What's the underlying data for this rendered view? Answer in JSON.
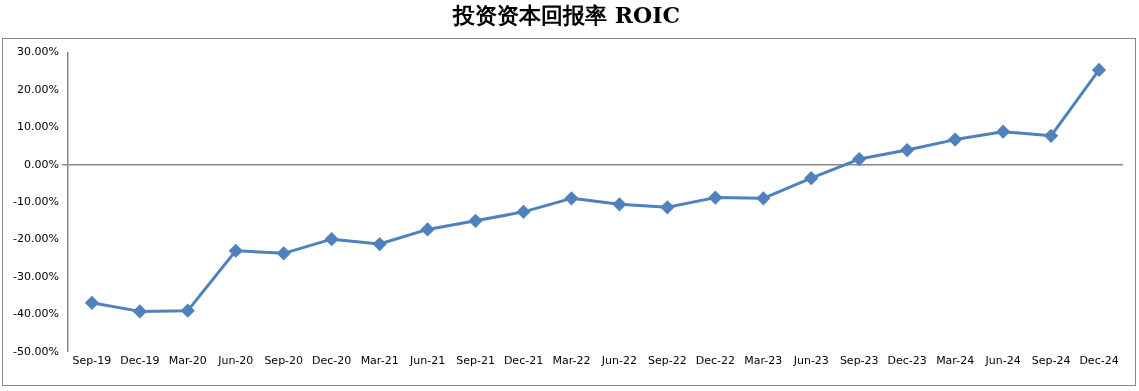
{
  "chart_data": {
    "type": "line",
    "title": "投资资本回报率 ROIC",
    "categories": [
      "Sep-19",
      "Dec-19",
      "Mar-20",
      "Jun-20",
      "Sep-20",
      "Dec-20",
      "Mar-21",
      "Jun-21",
      "Sep-21",
      "Dec-21",
      "Mar-22",
      "Jun-22",
      "Sep-22",
      "Dec-22",
      "Mar-23",
      "Jun-23",
      "Sep-23",
      "Dec-23",
      "Mar-24",
      "Jun-24",
      "Sep-24",
      "Dec-24"
    ],
    "series": [
      {
        "color": "#4f81bd",
        "values": [
          -36.9,
          -39.2,
          -39.0,
          -23.0,
          -23.7,
          -19.9,
          -21.2,
          -17.3,
          -15.0,
          -12.6,
          -9.0,
          -10.6,
          -11.4,
          -8.8,
          -9.0,
          -3.6,
          1.5,
          3.9,
          6.7,
          8.8,
          7.7,
          25.3
        ]
      }
    ],
    "ylim": [
      -50,
      30
    ],
    "yticks": [
      {
        "value": -50,
        "label": "-50.00%"
      },
      {
        "value": -40,
        "label": "-40.00%"
      },
      {
        "value": -30,
        "label": "-30.00%"
      },
      {
        "value": -20,
        "label": "-20.00%"
      },
      {
        "value": -10,
        "label": "-10.00%"
      },
      {
        "value": 0,
        "label": "0.00%"
      },
      {
        "value": 10,
        "label": "10.00%"
      },
      {
        "value": 20,
        "label": "20.00%"
      },
      {
        "value": 30,
        "label": "30.00%"
      }
    ],
    "marker": "diamond"
  }
}
